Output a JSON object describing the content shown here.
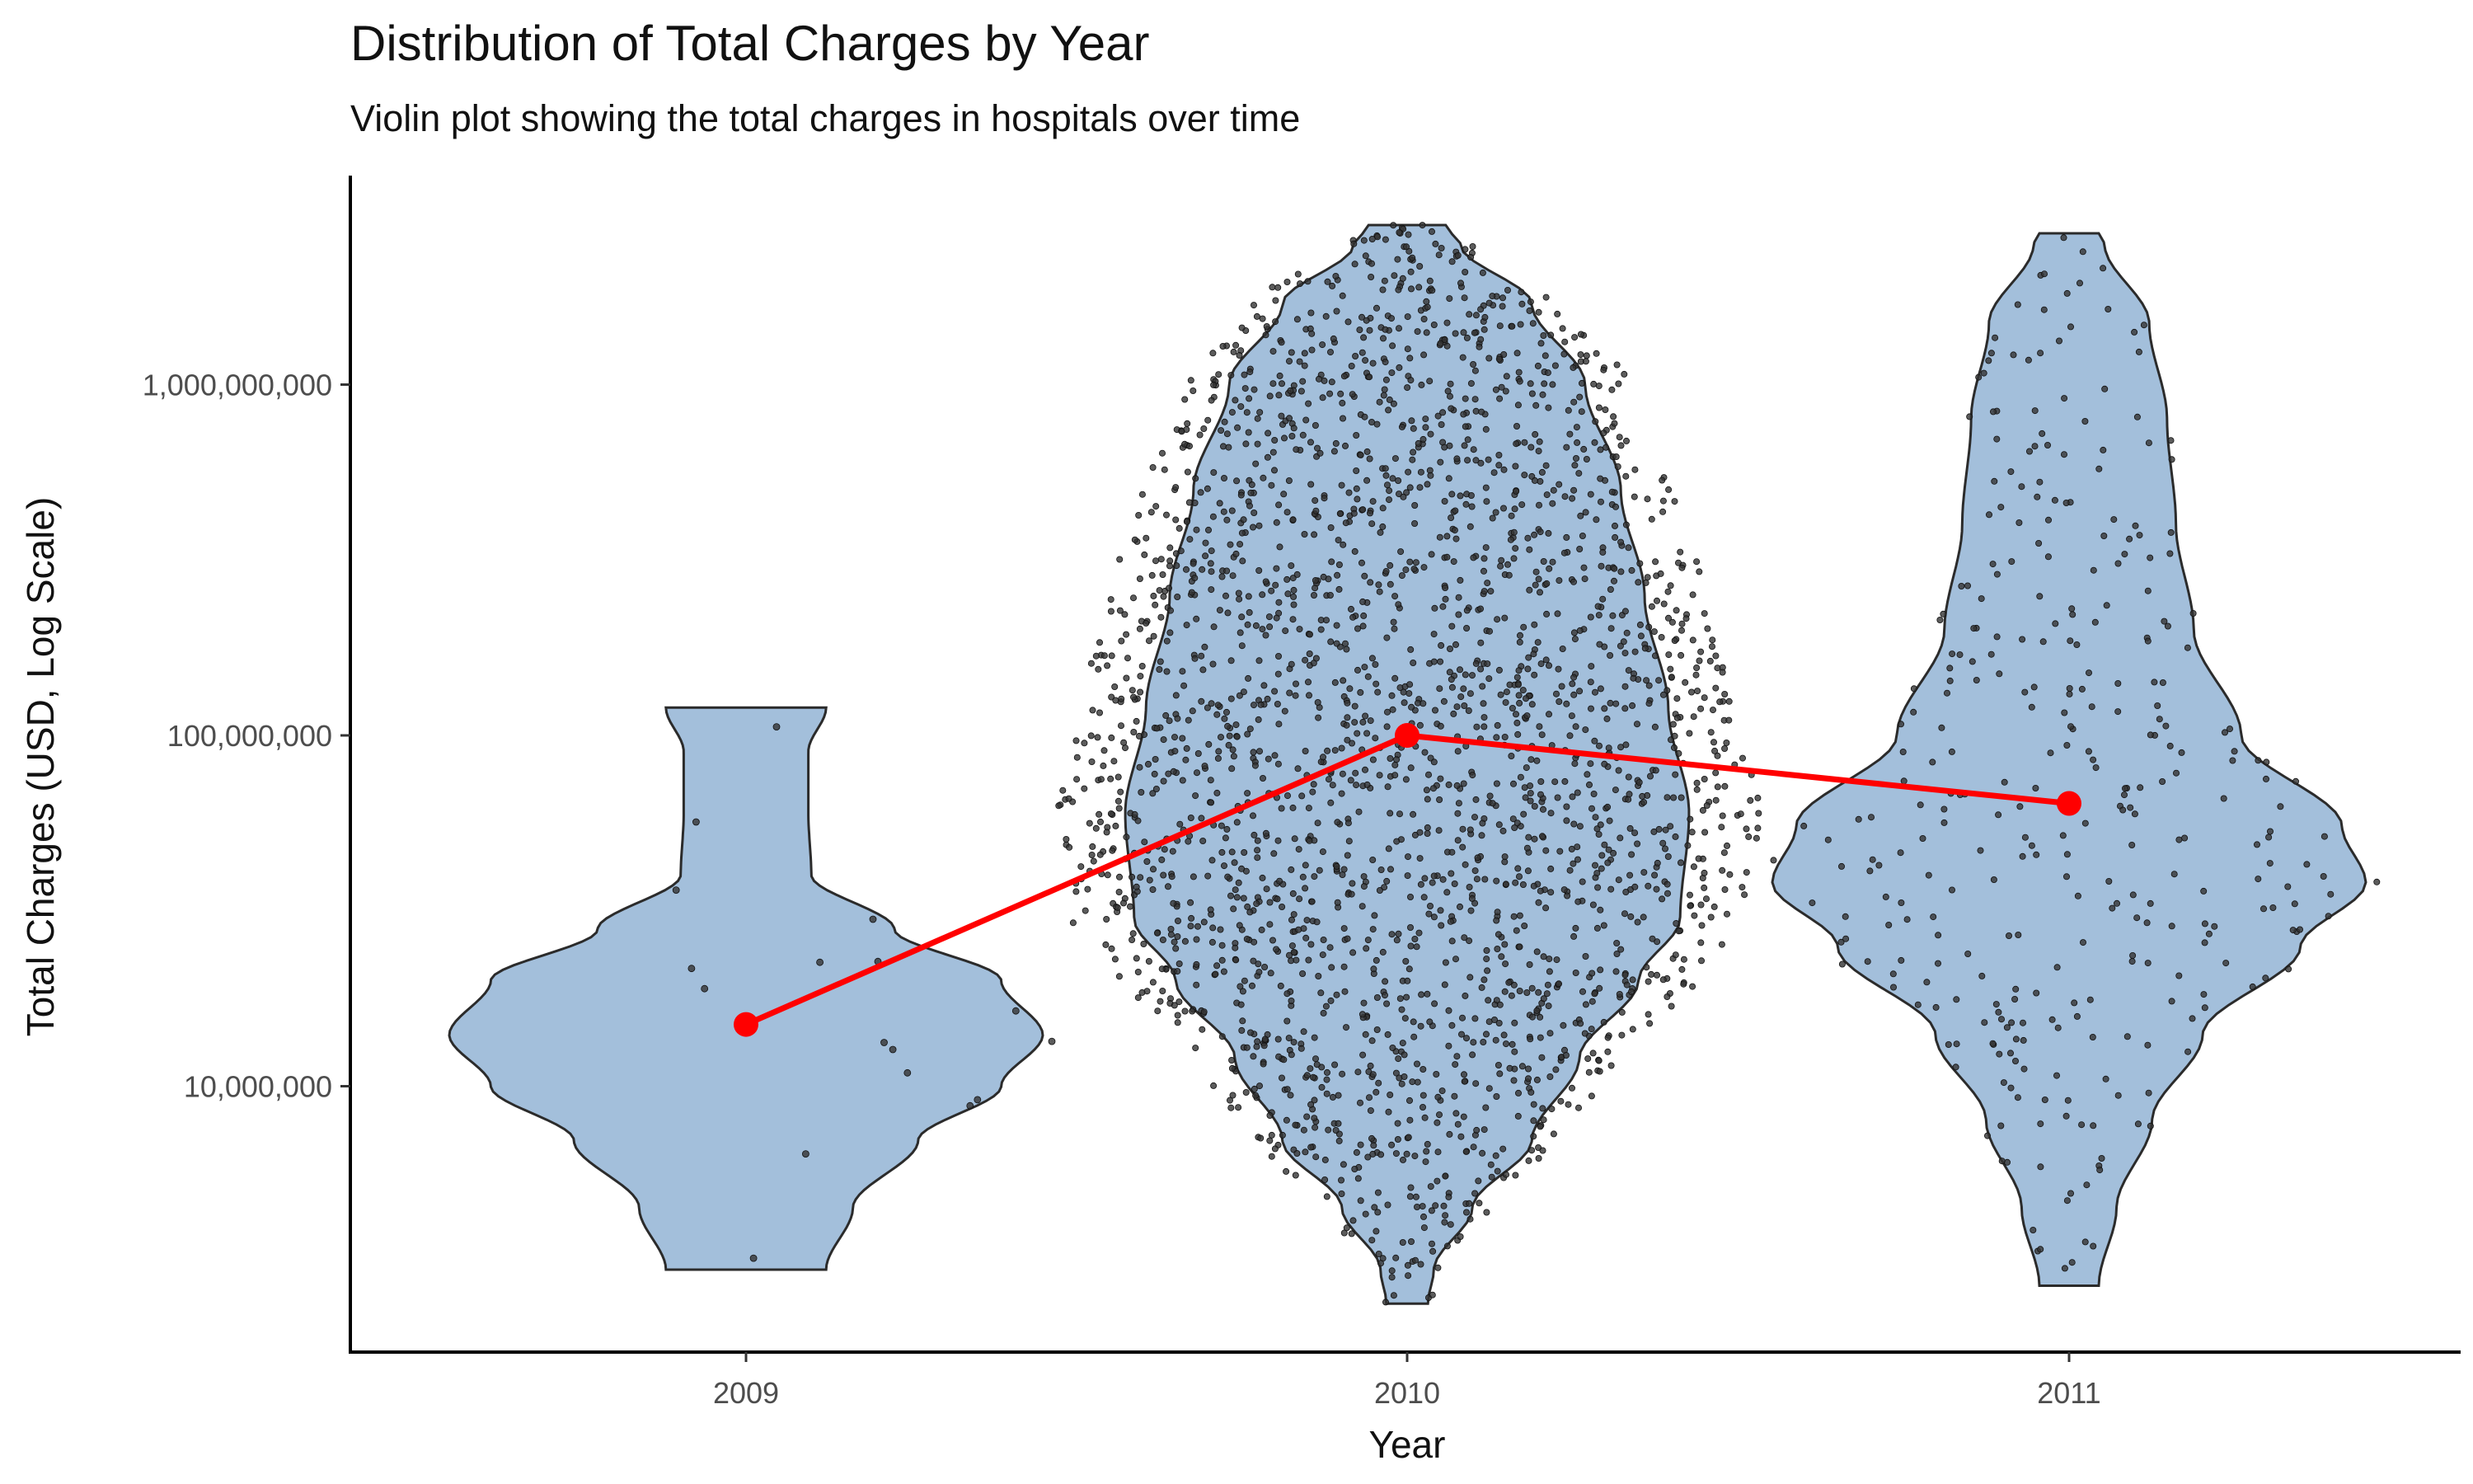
{
  "chart_data": {
    "type": "violin",
    "title": "Distribution of Total Charges by Year",
    "subtitle": "Violin plot showing the total charges in hospitals over time",
    "xlabel": "Year",
    "ylabel": "Total Charges (USD, Log Scale)",
    "yscale": "log10",
    "ylim": [
      2000000,
      3500000000
    ],
    "yticks": [
      10000000,
      100000000,
      1000000000
    ],
    "yticklabels": [
      "10,000,000",
      "100,000,000",
      "1,000,000,000"
    ],
    "categories": [
      "2009",
      "2010",
      "2011"
    ],
    "grid": false,
    "legend": "none",
    "colors": {
      "violin_fill": "#a3bfdb",
      "violin_stroke": "#2b2b2b",
      "median_line": "#ff0000",
      "points": "#333333"
    },
    "median_values": [
      15000000,
      100000000,
      64000000
    ],
    "violins": [
      {
        "category": "2009",
        "range": [
          3000000,
          120000000
        ],
        "approx_points": 17,
        "density_profile": [
          [
            3000000,
            0.27
          ],
          [
            4500000,
            0.36
          ],
          [
            7000000,
            0.58
          ],
          [
            10000000,
            0.86
          ],
          [
            14000000,
            1.0
          ],
          [
            20000000,
            0.86
          ],
          [
            28000000,
            0.5
          ],
          [
            40000000,
            0.22
          ],
          [
            60000000,
            0.21
          ],
          [
            90000000,
            0.21
          ],
          [
            120000000,
            0.27
          ]
        ]
      },
      {
        "category": "2010",
        "range": [
          2400000,
          2850000000
        ],
        "approx_points": 2500,
        "density_profile": [
          [
            2400000,
            0.07
          ],
          [
            3000000,
            0.09
          ],
          [
            4500000,
            0.22
          ],
          [
            7000000,
            0.42
          ],
          [
            12000000,
            0.58
          ],
          [
            20000000,
            0.78
          ],
          [
            30000000,
            0.92
          ],
          [
            60000000,
            0.95
          ],
          [
            120000000,
            0.88
          ],
          [
            250000000,
            0.8
          ],
          [
            500000000,
            0.72
          ],
          [
            1000000000,
            0.6
          ],
          [
            1700000000,
            0.42
          ],
          [
            2500000000,
            0.18
          ],
          [
            2850000000,
            0.13
          ]
        ]
      },
      {
        "category": "2011",
        "range": [
          2700000,
          2700000000
        ],
        "approx_points": 330,
        "density_profile": [
          [
            2700000,
            0.1
          ],
          [
            4500000,
            0.16
          ],
          [
            8000000,
            0.28
          ],
          [
            14000000,
            0.45
          ],
          [
            25000000,
            0.78
          ],
          [
            38000000,
            1.0
          ],
          [
            55000000,
            0.92
          ],
          [
            100000000,
            0.58
          ],
          [
            200000000,
            0.42
          ],
          [
            400000000,
            0.36
          ],
          [
            800000000,
            0.33
          ],
          [
            1500000000,
            0.27
          ],
          [
            2500000000,
            0.12
          ],
          [
            2700000000,
            0.1
          ]
        ]
      }
    ]
  }
}
